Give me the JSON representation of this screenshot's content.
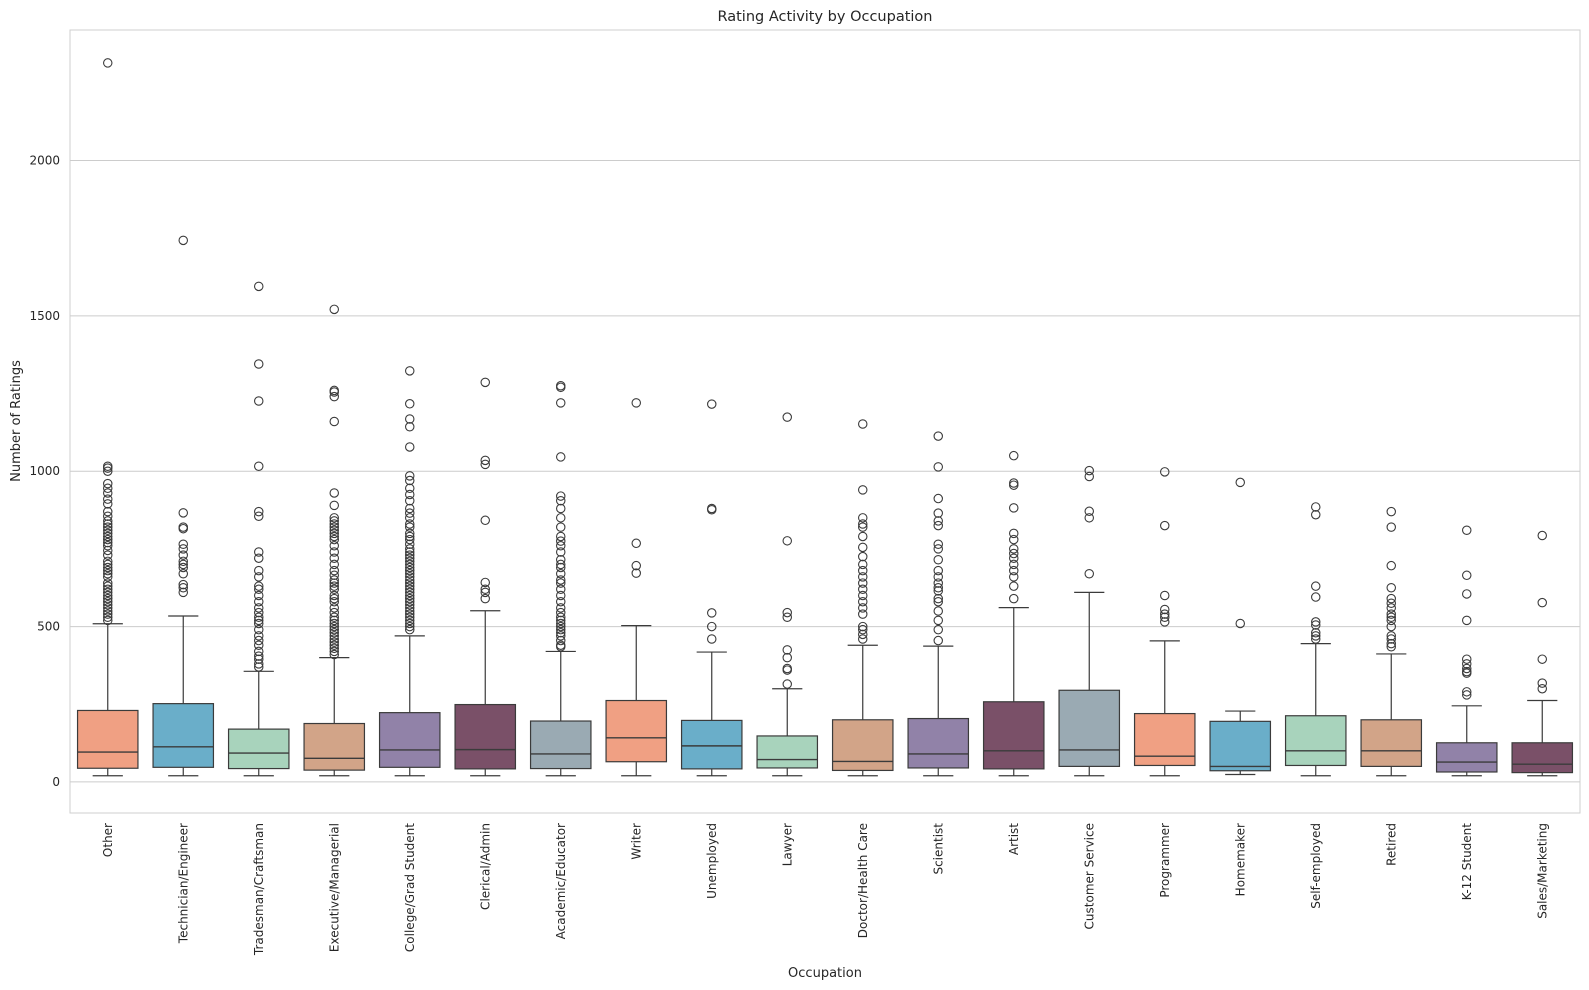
{
  "chart_data": {
    "type": "box",
    "title": "Rating Activity by Occupation",
    "xlabel": "Occupation",
    "ylabel": "Number of Ratings",
    "ylim": [
      -100,
      2420
    ],
    "yticks": [
      0,
      500,
      1000,
      1500,
      2000
    ],
    "grid": "horizontal",
    "legend": "none",
    "categories": [
      "Other",
      "Technician/Engineer",
      "Tradesman/Craftsman",
      "Executive/Managerial",
      "College/Grad Student",
      "Clerical/Admin",
      "Academic/Educator",
      "Writer",
      "Unemployed",
      "Lawyer",
      "Doctor/Health Care",
      "Scientist",
      "Artist",
      "Customer Service",
      "Programmer",
      "Homemaker",
      "Self-employed",
      "Retired",
      "K-12 Student",
      "Sales/Marketing"
    ],
    "boxes": [
      {
        "q1": 44,
        "median": 96,
        "q3": 230,
        "whisker_low": 20,
        "whisker_high": 509,
        "color": "#f0a083",
        "outliers": [
          2314,
          1016,
          1010,
          1000,
          960,
          945,
          930,
          910,
          895,
          870,
          855,
          840,
          830,
          820,
          810,
          800,
          790,
          780,
          770,
          760,
          745,
          730,
          710,
          700,
          690,
          680,
          670,
          660,
          640,
          630,
          620,
          610,
          600,
          590,
          580,
          570,
          560,
          550,
          540,
          530,
          520
        ]
      },
      {
        "q1": 47,
        "median": 113,
        "q3": 252,
        "whisker_low": 20,
        "whisker_high": 534,
        "color": "#6aaec9",
        "outliers": [
          1743,
          866,
          820,
          815,
          765,
          750,
          730,
          710,
          700,
          690,
          670,
          635,
          625,
          610
        ]
      },
      {
        "q1": 43,
        "median": 93,
        "q3": 170,
        "whisker_low": 20,
        "whisker_high": 356,
        "color": "#a8d3bc",
        "outliers": [
          1595,
          1345,
          1226,
          1016,
          870,
          855,
          740,
          720,
          680,
          660,
          630,
          620,
          600,
          580,
          560,
          545,
          530,
          520,
          510,
          490,
          470,
          455,
          440,
          420,
          405,
          395,
          380,
          370
        ]
      },
      {
        "q1": 38,
        "median": 76,
        "q3": 188,
        "whisker_low": 20,
        "whisker_high": 400,
        "color": "#d2a488",
        "outliers": [
          1521,
          1260,
          1255,
          1240,
          1160,
          930,
          890,
          850,
          840,
          830,
          820,
          810,
          800,
          790,
          780,
          760,
          740,
          720,
          700,
          680,
          665,
          650,
          640,
          630,
          620,
          600,
          590,
          580,
          560,
          545,
          530,
          520,
          510,
          500,
          490,
          480,
          470,
          460,
          450,
          440,
          430,
          420,
          410
        ]
      },
      {
        "q1": 47,
        "median": 103,
        "q3": 223,
        "whisker_low": 20,
        "whisker_high": 470,
        "color": "#9182a8",
        "outliers": [
          1323,
          1217,
          1168,
          1143,
          1078,
          985,
          970,
          945,
          925,
          905,
          880,
          865,
          850,
          830,
          820,
          800,
          790,
          780,
          765,
          750,
          740,
          730,
          720,
          710,
          700,
          690,
          680,
          670,
          660,
          650,
          640,
          630,
          620,
          610,
          600,
          590,
          580,
          570,
          560,
          550,
          540,
          530,
          520,
          510,
          500,
          490
        ]
      },
      {
        "q1": 42,
        "median": 104,
        "q3": 249,
        "whisker_low": 20,
        "whisker_high": 551,
        "color": "#7a5068",
        "outliers": [
          1286,
          1035,
          1022,
          842,
          642,
          620,
          610,
          590
        ]
      },
      {
        "q1": 43,
        "median": 90,
        "q3": 196,
        "whisker_low": 20,
        "whisker_high": 420,
        "color": "#9aaab3",
        "outliers": [
          1275,
          1270,
          1220,
          1046,
          920,
          905,
          880,
          850,
          820,
          790,
          775,
          760,
          740,
          715,
          700,
          690,
          670,
          650,
          640,
          620,
          600,
          580,
          560,
          545,
          530,
          520,
          510,
          500,
          490,
          480,
          470,
          455,
          440,
          435
        ]
      },
      {
        "q1": 65,
        "median": 142,
        "q3": 262,
        "whisker_low": 20,
        "whisker_high": 503,
        "color": "#f0a083",
        "outliers": [
          1220,
          768,
          696,
          672
        ]
      },
      {
        "q1": 42,
        "median": 116,
        "q3": 198,
        "whisker_low": 20,
        "whisker_high": 418,
        "color": "#6aaec9",
        "outliers": [
          1216,
          880,
          876,
          544,
          500,
          460
        ]
      },
      {
        "q1": 45,
        "median": 72,
        "q3": 148,
        "whisker_low": 20,
        "whisker_high": 300,
        "color": "#a8d3bc",
        "outliers": [
          1174,
          776,
          545,
          530,
          425,
          400,
          365,
          360,
          315
        ]
      },
      {
        "q1": 37,
        "median": 66,
        "q3": 200,
        "whisker_low": 20,
        "whisker_high": 440,
        "color": "#d2a488",
        "outliers": [
          1152,
          940,
          850,
          830,
          820,
          790,
          755,
          725,
          700,
          680,
          660,
          640,
          620,
          600,
          580,
          560,
          540,
          500,
          490,
          475,
          460
        ]
      },
      {
        "q1": 45,
        "median": 90,
        "q3": 204,
        "whisker_low": 20,
        "whisker_high": 437,
        "color": "#9182a8",
        "outliers": [
          1113,
          1014,
          912,
          865,
          840,
          825,
          765,
          750,
          715,
          680,
          660,
          640,
          625,
          615,
          590,
          580,
          550,
          520,
          490,
          455
        ]
      },
      {
        "q1": 42,
        "median": 100,
        "q3": 258,
        "whisker_low": 20,
        "whisker_high": 561,
        "color": "#7a5068",
        "outliers": [
          1050,
          962,
          955,
          882,
          800,
          780,
          750,
          735,
          720,
          700,
          680,
          660,
          630,
          590
        ]
      },
      {
        "q1": 50,
        "median": 103,
        "q3": 295,
        "whisker_low": 20,
        "whisker_high": 610,
        "color": "#9aaab3",
        "outliers": [
          1002,
          983,
          871,
          850,
          670
        ]
      },
      {
        "q1": 53,
        "median": 83,
        "q3": 220,
        "whisker_low": 20,
        "whisker_high": 454,
        "color": "#f0a083",
        "outliers": [
          998,
          825,
          600,
          555,
          540,
          530,
          515
        ]
      },
      {
        "q1": 36,
        "median": 50,
        "q3": 195,
        "whisker_low": 24,
        "whisker_high": 228,
        "color": "#6aaec9",
        "outliers": [
          964,
          510
        ]
      },
      {
        "q1": 53,
        "median": 100,
        "q3": 213,
        "whisker_low": 20,
        "whisker_high": 445,
        "color": "#a8d3bc",
        "outliers": [
          885,
          860,
          630,
          595,
          515,
          505,
          480,
          470,
          460
        ]
      },
      {
        "q1": 50,
        "median": 100,
        "q3": 200,
        "whisker_low": 20,
        "whisker_high": 412,
        "color": "#d2a488",
        "outliers": [
          870,
          820,
          696,
          625,
          590,
          575,
          560,
          540,
          530,
          520,
          500,
          470,
          460,
          445,
          435
        ]
      },
      {
        "q1": 32,
        "median": 64,
        "q3": 126,
        "whisker_low": 20,
        "whisker_high": 245,
        "color": "#9182a8",
        "outliers": [
          810,
          665,
          605,
          520,
          395,
          380,
          365,
          355,
          350,
          290,
          280
        ]
      },
      {
        "q1": 30,
        "median": 57,
        "q3": 126,
        "whisker_low": 20,
        "whisker_high": 262,
        "color": "#7a5068",
        "outliers": [
          793,
          577,
          395,
          318,
          300
        ]
      }
    ]
  }
}
